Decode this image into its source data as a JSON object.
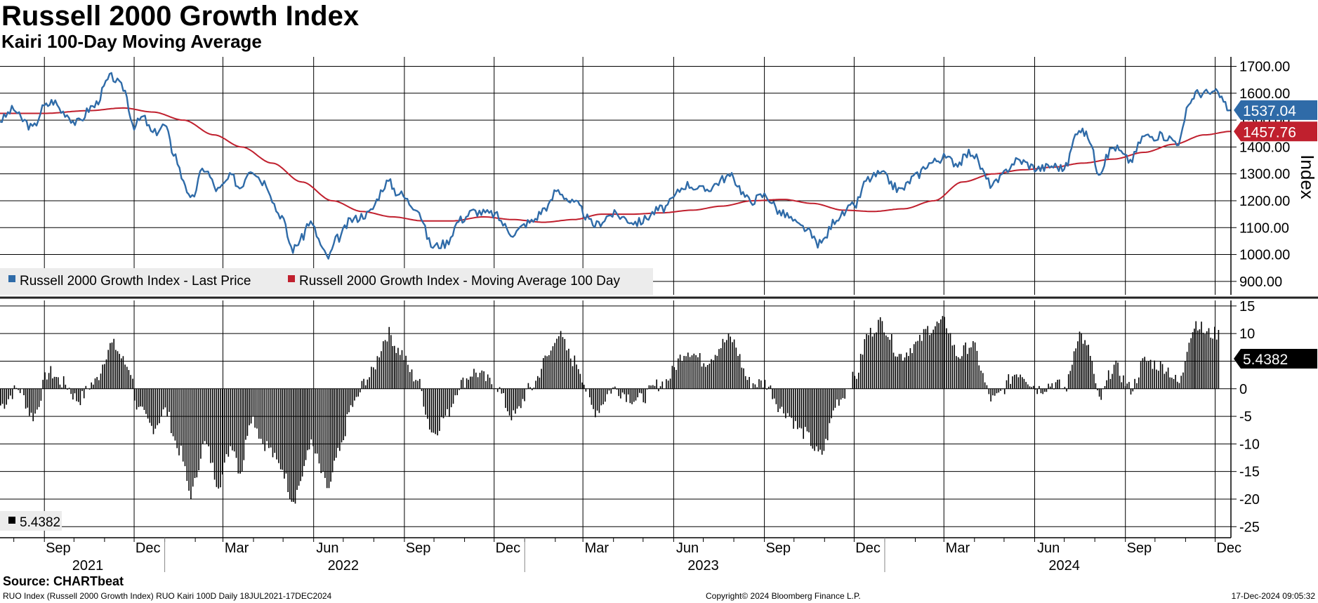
{
  "header": {
    "title": "Russell 2000 Growth Index",
    "subtitle": "Kairi 100-Day Moving Average"
  },
  "footer": {
    "source": "Source: CHARTbeat",
    "description": "RUO Index (Russell 2000 Growth Index) RUO Kairi 100D  Daily 18JUL2021-17DEC2024",
    "copyright": "Copyright© 2024 Bloomberg Finance L.P.",
    "timestamp": "17-Dec-2024 09:05:32"
  },
  "colors": {
    "price": "#2f6ba8",
    "moving_average": "#c0202e",
    "kairi": "#000000",
    "grid": "#000000"
  },
  "chart_data": [
    {
      "type": "line",
      "title": "Russell 2000 Growth Index",
      "ylabel": "Index",
      "ylim": [
        850,
        1730
      ],
      "y_ticks": [
        900,
        1000,
        1100,
        1200,
        1300,
        1400,
        1500,
        1600,
        1700
      ],
      "y_tick_labels": [
        "900.00",
        "1000.00",
        "1100.00",
        "1200.00",
        "1300.00",
        "1400.00",
        "1500.00",
        "1600.00",
        "1700.00"
      ],
      "x_range": [
        "2021-07-18",
        "2024-12-17"
      ],
      "legend": [
        {
          "label": "Russell 2000 Growth Index - Last Price",
          "color": "#2f6ba8"
        },
        {
          "label": "Russell 2000 Growth Index - Moving Average 100 Day",
          "color": "#c0202e"
        }
      ],
      "last_values": [
        {
          "label": "1537.04",
          "value": 1537.04,
          "color": "#2f6ba8"
        },
        {
          "label": "1457.76",
          "value": 1457.76,
          "color": "#c0202e"
        }
      ],
      "series": [
        {
          "name": "Russell 2000 Growth Index - Last Price",
          "color": "#2f6ba8",
          "points": [
            [
              "2021-07-18",
              1500
            ],
            [
              "2021-08-01",
              1540
            ],
            [
              "2021-08-10",
              1500
            ],
            [
              "2021-08-20",
              1470
            ],
            [
              "2021-09-01",
              1550
            ],
            [
              "2021-09-10",
              1570
            ],
            [
              "2021-09-20",
              1530
            ],
            [
              "2021-10-04",
              1490
            ],
            [
              "2021-10-20",
              1550
            ],
            [
              "2021-11-08",
              1660
            ],
            [
              "2021-11-20",
              1620
            ],
            [
              "2021-12-01",
              1480
            ],
            [
              "2021-12-10",
              1510
            ],
            [
              "2021-12-20",
              1450
            ],
            [
              "2022-01-01",
              1480
            ],
            [
              "2022-01-10",
              1380
            ],
            [
              "2022-01-20",
              1280
            ],
            [
              "2022-01-27",
              1200
            ],
            [
              "2022-02-10",
              1320
            ],
            [
              "2022-02-24",
              1240
            ],
            [
              "2022-03-10",
              1290
            ],
            [
              "2022-03-18",
              1250
            ],
            [
              "2022-03-29",
              1320
            ],
            [
              "2022-04-12",
              1270
            ],
            [
              "2022-04-28",
              1150
            ],
            [
              "2022-05-11",
              1020
            ],
            [
              "2022-05-20",
              1060
            ],
            [
              "2022-05-27",
              1120
            ],
            [
              "2022-06-16",
              990
            ],
            [
              "2022-06-25",
              1060
            ],
            [
              "2022-07-10",
              1130
            ],
            [
              "2022-07-25",
              1150
            ],
            [
              "2022-08-16",
              1270
            ],
            [
              "2022-08-25",
              1230
            ],
            [
              "2022-09-12",
              1180
            ],
            [
              "2022-09-30",
              1030
            ],
            [
              "2022-10-12",
              1040
            ],
            [
              "2022-10-28",
              1130
            ],
            [
              "2022-11-10",
              1160
            ],
            [
              "2022-11-30",
              1150
            ],
            [
              "2022-12-20",
              1080
            ],
            [
              "2023-01-06",
              1120
            ],
            [
              "2023-01-25",
              1180
            ],
            [
              "2023-02-02",
              1240
            ],
            [
              "2023-02-20",
              1190
            ],
            [
              "2023-03-13",
              1110
            ],
            [
              "2023-03-31",
              1150
            ],
            [
              "2023-04-25",
              1120
            ],
            [
              "2023-05-20",
              1170
            ],
            [
              "2023-06-15",
              1260
            ],
            [
              "2023-07-01",
              1240
            ],
            [
              "2023-07-28",
              1290
            ],
            [
              "2023-08-18",
              1200
            ],
            [
              "2023-09-01",
              1220
            ],
            [
              "2023-09-20",
              1150
            ],
            [
              "2023-10-10",
              1100
            ],
            [
              "2023-10-27",
              1040
            ],
            [
              "2023-11-15",
              1140
            ],
            [
              "2023-12-01",
              1180
            ],
            [
              "2023-12-15",
              1280
            ],
            [
              "2023-12-27",
              1300
            ],
            [
              "2024-01-17",
              1240
            ],
            [
              "2024-02-01",
              1290
            ],
            [
              "2024-02-15",
              1340
            ],
            [
              "2024-03-01",
              1360
            ],
            [
              "2024-03-15",
              1340
            ],
            [
              "2024-03-28",
              1380
            ],
            [
              "2024-04-19",
              1260
            ],
            [
              "2024-05-15",
              1350
            ],
            [
              "2024-06-05",
              1320
            ],
            [
              "2024-06-20",
              1330
            ],
            [
              "2024-07-01",
              1320
            ],
            [
              "2024-07-16",
              1470
            ],
            [
              "2024-07-25",
              1440
            ],
            [
              "2024-08-05",
              1310
            ],
            [
              "2024-08-20",
              1400
            ],
            [
              "2024-09-06",
              1350
            ],
            [
              "2024-09-20",
              1440
            ],
            [
              "2024-10-10",
              1440
            ],
            [
              "2024-10-25",
              1420
            ],
            [
              "2024-11-06",
              1570
            ],
            [
              "2024-11-11",
              1600
            ],
            [
              "2024-11-22",
              1600
            ],
            [
              "2024-12-02",
              1600
            ],
            [
              "2024-12-17",
              1537
            ]
          ]
        },
        {
          "name": "Russell 2000 Growth Index - Moving Average 100 Day",
          "color": "#c0202e",
          "points": [
            [
              "2021-07-18",
              1525
            ],
            [
              "2021-09-01",
              1525
            ],
            [
              "2021-10-15",
              1535
            ],
            [
              "2021-11-20",
              1545
            ],
            [
              "2021-12-20",
              1530
            ],
            [
              "2022-01-20",
              1500
            ],
            [
              "2022-02-20",
              1445
            ],
            [
              "2022-03-20",
              1400
            ],
            [
              "2022-04-20",
              1340
            ],
            [
              "2022-05-20",
              1270
            ],
            [
              "2022-06-20",
              1200
            ],
            [
              "2022-07-20",
              1160
            ],
            [
              "2022-08-20",
              1140
            ],
            [
              "2022-09-20",
              1125
            ],
            [
              "2022-10-20",
              1125
            ],
            [
              "2022-11-20",
              1140
            ],
            [
              "2022-12-20",
              1130
            ],
            [
              "2023-01-20",
              1120
            ],
            [
              "2023-02-20",
              1130
            ],
            [
              "2023-03-20",
              1150
            ],
            [
              "2023-04-20",
              1150
            ],
            [
              "2023-05-20",
              1155
            ],
            [
              "2023-06-20",
              1165
            ],
            [
              "2023-07-20",
              1180
            ],
            [
              "2023-08-20",
              1200
            ],
            [
              "2023-09-20",
              1205
            ],
            [
              "2023-10-20",
              1190
            ],
            [
              "2023-11-20",
              1165
            ],
            [
              "2023-12-20",
              1160
            ],
            [
              "2024-01-20",
              1170
            ],
            [
              "2024-02-20",
              1200
            ],
            [
              "2024-03-20",
              1270
            ],
            [
              "2024-04-20",
              1300
            ],
            [
              "2024-05-20",
              1315
            ],
            [
              "2024-06-20",
              1325
            ],
            [
              "2024-07-20",
              1340
            ],
            [
              "2024-08-20",
              1355
            ],
            [
              "2024-09-20",
              1380
            ],
            [
              "2024-10-20",
              1410
            ],
            [
              "2024-11-20",
              1445
            ],
            [
              "2024-12-17",
              1458
            ]
          ]
        }
      ]
    },
    {
      "type": "bar",
      "title": "Kairi 100-Day",
      "ylim": [
        -27,
        16
      ],
      "y_ticks": [
        -25,
        -20,
        -15,
        -10,
        -5,
        0,
        5,
        10,
        15
      ],
      "y_tick_labels": [
        "-25",
        "-20",
        "-15",
        "-10",
        "-5",
        "0",
        "5",
        "10",
        "15"
      ],
      "legend": [
        {
          "label": "5.4382",
          "color": "#000000"
        }
      ],
      "last_value": {
        "label": "5.4382",
        "value": 5.4382
      },
      "series": [
        {
          "name": "Kairi 100D",
          "color": "#000000",
          "points": [
            [
              "2021-07-18",
              -3
            ],
            [
              "2021-08-05",
              0
            ],
            [
              "2021-08-20",
              -5
            ],
            [
              "2021-09-05",
              3
            ],
            [
              "2021-09-20",
              1
            ],
            [
              "2021-10-05",
              -2
            ],
            [
              "2021-10-20",
              1
            ],
            [
              "2021-11-08",
              8
            ],
            [
              "2021-11-25",
              4
            ],
            [
              "2021-12-05",
              -4
            ],
            [
              "2021-12-20",
              -7
            ],
            [
              "2022-01-01",
              -4
            ],
            [
              "2022-01-15",
              -11
            ],
            [
              "2022-01-27",
              -19
            ],
            [
              "2022-02-10",
              -10
            ],
            [
              "2022-02-24",
              -17
            ],
            [
              "2022-03-10",
              -10
            ],
            [
              "2022-03-18",
              -15
            ],
            [
              "2022-03-29",
              -5
            ],
            [
              "2022-04-12",
              -10
            ],
            [
              "2022-04-28",
              -14
            ],
            [
              "2022-05-11",
              -20
            ],
            [
              "2022-05-20",
              -16
            ],
            [
              "2022-05-27",
              -10
            ],
            [
              "2022-06-16",
              -18
            ],
            [
              "2022-06-25",
              -12
            ],
            [
              "2022-07-10",
              -3
            ],
            [
              "2022-07-25",
              2
            ],
            [
              "2022-08-16",
              10
            ],
            [
              "2022-08-25",
              7
            ],
            [
              "2022-09-12",
              2
            ],
            [
              "2022-09-30",
              -8
            ],
            [
              "2022-10-12",
              -5
            ],
            [
              "2022-10-28",
              1
            ],
            [
              "2022-11-10",
              3
            ],
            [
              "2022-11-30",
              1
            ],
            [
              "2022-12-20",
              -5
            ],
            [
              "2023-01-06",
              0
            ],
            [
              "2023-01-25",
              6
            ],
            [
              "2023-02-02",
              10
            ],
            [
              "2023-02-20",
              5
            ],
            [
              "2023-03-13",
              -4
            ],
            [
              "2023-03-31",
              0
            ],
            [
              "2023-04-25",
              -2
            ],
            [
              "2023-05-20",
              1
            ],
            [
              "2023-06-15",
              7
            ],
            [
              "2023-07-01",
              5
            ],
            [
              "2023-07-28",
              9
            ],
            [
              "2023-08-18",
              1
            ],
            [
              "2023-09-01",
              1
            ],
            [
              "2023-09-20",
              -4
            ],
            [
              "2023-10-10",
              -8
            ],
            [
              "2023-10-27",
              -12
            ],
            [
              "2023-11-15",
              -2
            ],
            [
              "2023-12-01",
              2
            ],
            [
              "2023-12-15",
              10
            ],
            [
              "2023-12-27",
              12
            ],
            [
              "2024-01-17",
              6
            ],
            [
              "2024-02-01",
              8
            ],
            [
              "2024-02-15",
              11
            ],
            [
              "2024-03-01",
              12
            ],
            [
              "2024-03-15",
              6
            ],
            [
              "2024-03-28",
              8
            ],
            [
              "2024-04-19",
              -2
            ],
            [
              "2024-05-15",
              3
            ],
            [
              "2024-06-05",
              0
            ],
            [
              "2024-06-20",
              1
            ],
            [
              "2024-07-01",
              0
            ],
            [
              "2024-07-16",
              10
            ],
            [
              "2024-07-25",
              7
            ],
            [
              "2024-08-05",
              -2
            ],
            [
              "2024-08-20",
              4
            ],
            [
              "2024-09-06",
              0
            ],
            [
              "2024-09-20",
              5
            ],
            [
              "2024-10-10",
              4
            ],
            [
              "2024-10-25",
              1
            ],
            [
              "2024-11-06",
              10
            ],
            [
              "2024-11-11",
              12
            ],
            [
              "2024-11-22",
              10
            ],
            [
              "2024-12-02",
              10
            ],
            [
              "2024-12-17",
              5.44
            ]
          ]
        }
      ]
    }
  ],
  "x_axis": {
    "month_labels": [
      {
        "label": "Sep",
        "date": "2021-09-15"
      },
      {
        "label": "Dec",
        "date": "2021-12-15"
      },
      {
        "label": "Mar",
        "date": "2022-03-15"
      },
      {
        "label": "Jun",
        "date": "2022-06-15"
      },
      {
        "label": "Sep",
        "date": "2022-09-15"
      },
      {
        "label": "Dec",
        "date": "2022-12-15"
      },
      {
        "label": "Mar",
        "date": "2023-03-15"
      },
      {
        "label": "Jun",
        "date": "2023-06-15"
      },
      {
        "label": "Sep",
        "date": "2023-09-15"
      },
      {
        "label": "Dec",
        "date": "2023-12-15"
      },
      {
        "label": "Mar",
        "date": "2024-03-15"
      },
      {
        "label": "Jun",
        "date": "2024-06-15"
      },
      {
        "label": "Sep",
        "date": "2024-09-15"
      },
      {
        "label": "Dec",
        "date": "2024-12-15"
      }
    ],
    "gridlines": [
      "2021-09-01",
      "2021-12-01",
      "2022-03-01",
      "2022-06-01",
      "2022-09-01",
      "2022-12-01",
      "2023-03-01",
      "2023-06-01",
      "2023-09-01",
      "2023-12-01",
      "2024-03-01",
      "2024-06-01",
      "2024-09-01",
      "2024-12-01"
    ],
    "year_labels": [
      {
        "label": "2021",
        "date": "2021-10-15"
      },
      {
        "label": "2022",
        "date": "2022-07-01"
      },
      {
        "label": "2023",
        "date": "2023-07-01"
      },
      {
        "label": "2024",
        "date": "2024-07-01"
      }
    ],
    "year_dividers": [
      "2022-01-01",
      "2023-01-01",
      "2024-01-01"
    ]
  }
}
